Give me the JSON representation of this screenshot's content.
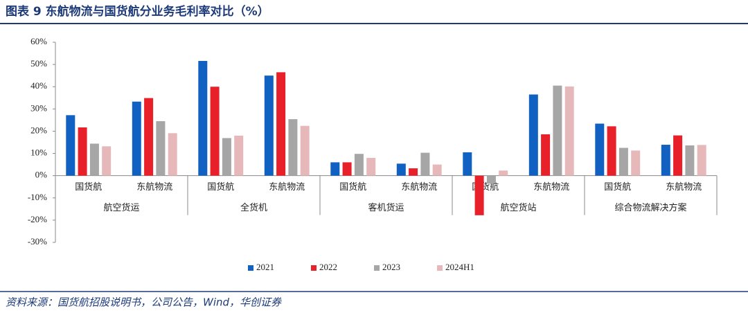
{
  "chart_data": {
    "type": "bar",
    "title": "图表 9   东航物流与国货航分业务毛利率对比（%）",
    "source": "资料来源：国货航招股说明书，公司公告，Wind，华创证券",
    "categories": [
      "国货航",
      "东航物流",
      "国货航",
      "东航物流",
      "国货航",
      "东航物流",
      "国货航",
      "东航物流",
      "国货航",
      "东航物流"
    ],
    "groups": [
      "航空货运",
      "全货机",
      "客机货运",
      "航空货站",
      "综合物流解决方案"
    ],
    "series": [
      {
        "name": "2021",
        "color": "#1061c1",
        "values": [
          27.2,
          33.3,
          51.6,
          45.0,
          6.0,
          5.4,
          10.5,
          36.5,
          23.4,
          13.9
        ]
      },
      {
        "name": "2022",
        "color": "#e8202a",
        "values": [
          21.7,
          34.9,
          40.0,
          46.5,
          6.0,
          3.3,
          -17.8,
          18.6,
          22.2,
          18.1
        ]
      },
      {
        "name": "2023",
        "color": "#a6a6a6",
        "values": [
          14.4,
          24.5,
          16.9,
          25.4,
          9.8,
          10.3,
          -3.6,
          40.5,
          12.5,
          13.6
        ]
      },
      {
        "name": "2024H1",
        "color": "#e6b8b9",
        "values": [
          13.2,
          19.1,
          18.0,
          22.4,
          8.0,
          5.0,
          2.3,
          40.1,
          11.3,
          13.8
        ]
      }
    ],
    "ylim": [
      -30,
      60
    ],
    "yticks": [
      {
        "value": -30,
        "label": "-30%"
      },
      {
        "value": -20,
        "label": "-20%"
      },
      {
        "value": -10,
        "label": "-10%"
      },
      {
        "value": 0,
        "label": "0%"
      },
      {
        "value": 10,
        "label": "10%"
      },
      {
        "value": 20,
        "label": "20%"
      },
      {
        "value": 30,
        "label": "30%"
      },
      {
        "value": 40,
        "label": "40%"
      },
      {
        "value": 50,
        "label": "50%"
      },
      {
        "value": 60,
        "label": "60%"
      }
    ]
  }
}
